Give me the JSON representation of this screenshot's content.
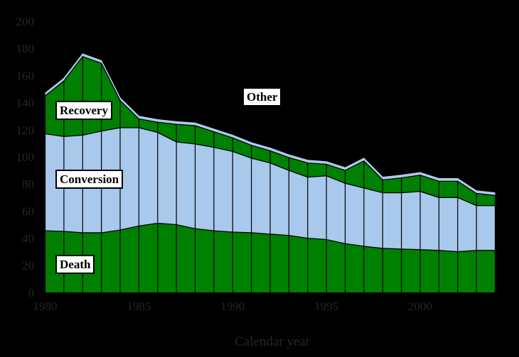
{
  "chart_data": {
    "type": "area",
    "stacked": true,
    "title": "",
    "xlabel": "Calendar year",
    "ylabel": "",
    "xlim": [
      1980,
      2004
    ],
    "ylim": [
      0,
      200
    ],
    "x_ticks": [
      1980,
      1985,
      1990,
      1995,
      2000
    ],
    "y_ticks": [
      0,
      20,
      40,
      60,
      80,
      100,
      120,
      140,
      160,
      180,
      200
    ],
    "grid": "vertical-gridline-per-year",
    "legend_position": "inline-boxed-labels",
    "plot_background": "#000000",
    "x": [
      1980,
      1981,
      1982,
      1983,
      1984,
      1985,
      1986,
      1987,
      1988,
      1989,
      1990,
      1991,
      1992,
      1993,
      1994,
      1995,
      1996,
      1997,
      1998,
      1999,
      2000,
      2001,
      2002,
      2003,
      2004
    ],
    "series": [
      {
        "name": "Death",
        "color": "#008000",
        "values": [
          45.5,
          45,
          44,
          44,
          46,
          49,
          51,
          50,
          47,
          45.5,
          44.5,
          44,
          43,
          42,
          40,
          39,
          36,
          34,
          32.5,
          32,
          31.5,
          31,
          30,
          31,
          31
        ]
      },
      {
        "name": "Conversion",
        "color": "#A8C8EC",
        "values": [
          71.5,
          70,
          72,
          75,
          75.5,
          72.5,
          67,
          61,
          62.5,
          61.5,
          59.5,
          55,
          52.5,
          48,
          45,
          47,
          44.5,
          43,
          41,
          41.5,
          43,
          39,
          40,
          33,
          33
        ]
      },
      {
        "name": "Recovery",
        "color": "#008000",
        "values": [
          28,
          41,
          58,
          50,
          20,
          6.5,
          7.5,
          13,
          13.5,
          11.5,
          10,
          9.5,
          9,
          9.5,
          10.5,
          8.5,
          9.5,
          20,
          9.5,
          11,
          12,
          12,
          12,
          9,
          7.5
        ]
      },
      {
        "name": "Other",
        "color": "#A8C8EC",
        "values": [
          2,
          2,
          2,
          2,
          2,
          2,
          2,
          2,
          2,
          2,
          2,
          2,
          2,
          2,
          2,
          2,
          2,
          2,
          2,
          2,
          2,
          2,
          2,
          2,
          2
        ]
      }
    ],
    "annotations": [
      {
        "label": "Recovery"
      },
      {
        "label": "Conversion"
      },
      {
        "label": "Death"
      },
      {
        "label": "Other"
      }
    ]
  },
  "axis": {
    "tick_text_color": "#262626",
    "boundary_line_color": "#000000",
    "top_edge_color": "#B8D2F0",
    "label_box_background": "#FFFFFF",
    "label_box_border": "#000000"
  }
}
